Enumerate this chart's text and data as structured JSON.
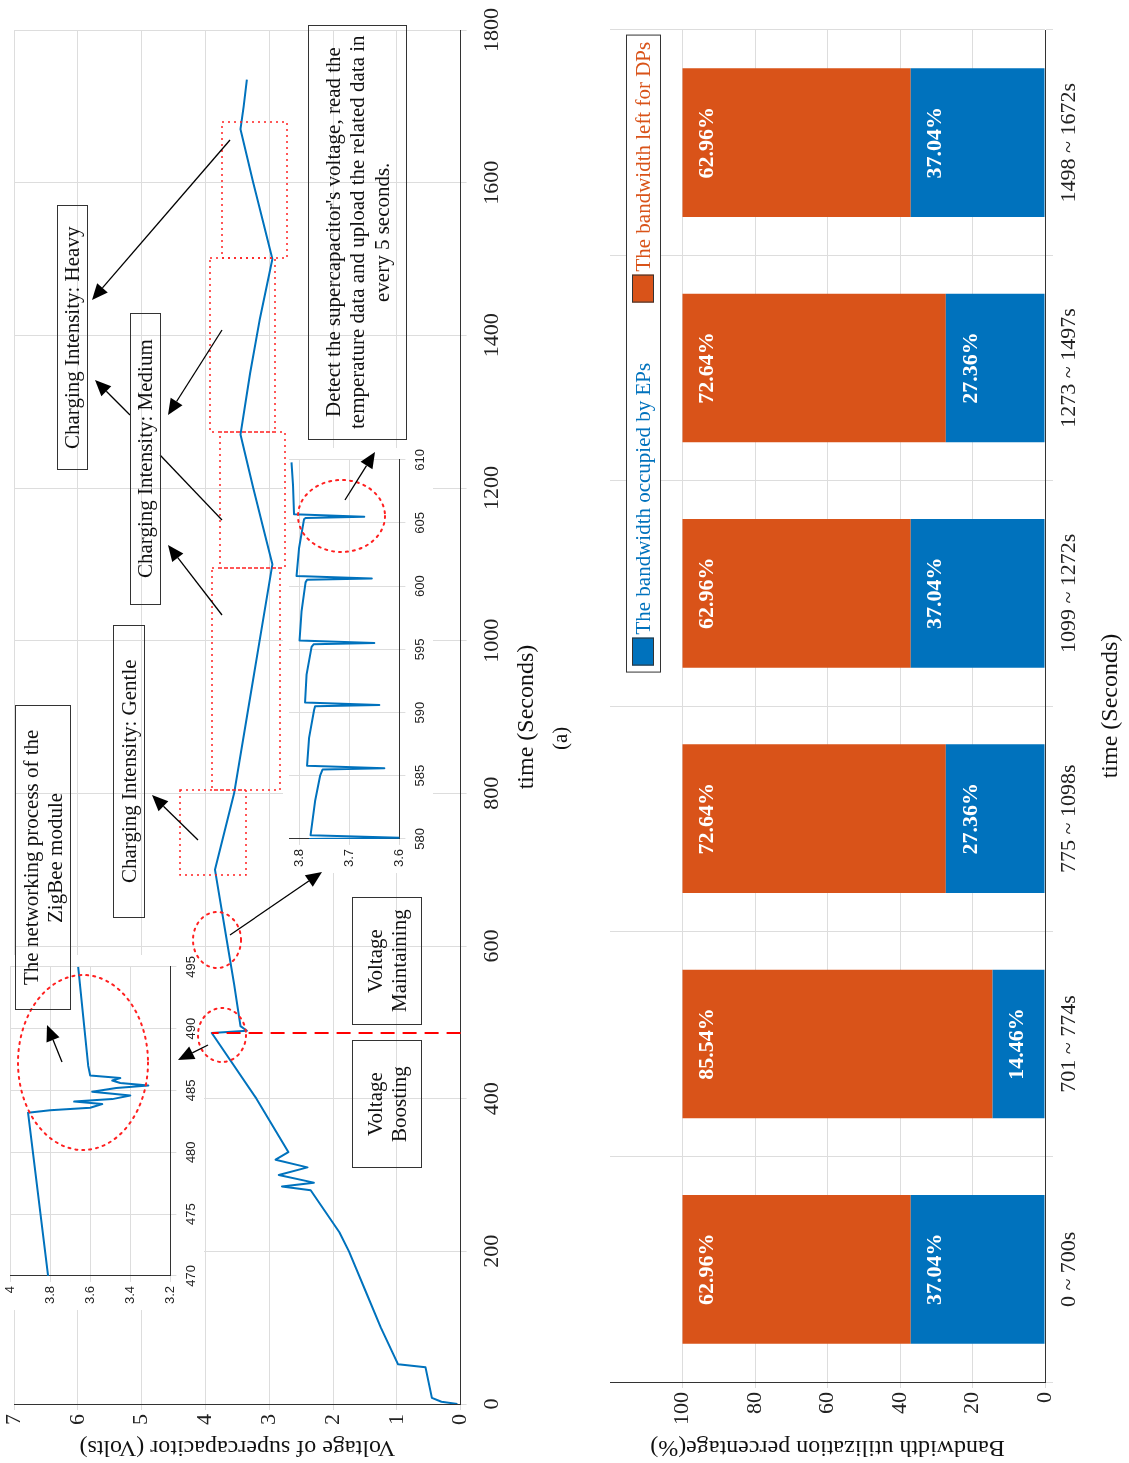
{
  "chart_data": [
    {
      "type": "line",
      "xlabel": "Voltage of supercapacitor (Volts)",
      "ylabel": "time (Seconds)",
      "color": "#0072bd",
      "x": [
        0.05,
        0.3,
        0.45,
        0.55,
        0.98,
        1.25,
        1.5,
        1.75,
        1.9,
        2.35,
        2.8,
        2.3,
        2.85,
        2.4,
        2.9,
        2.7,
        3.2,
        3.9,
        3.35,
        3.45,
        3.55,
        3.65,
        3.75,
        3.85,
        3.7,
        3.55,
        3.35,
        3.15,
        2.95,
        3.1,
        3.25,
        3.45,
        3.3,
        3.15,
        2.95,
        3.1,
        3.25,
        3.45,
        3.4,
        3.35
      ],
      "values": [
        0,
        3,
        8,
        48,
        52,
        100,
        150,
        200,
        225,
        280,
        285,
        290,
        300,
        310,
        320,
        330,
        400,
        486,
        489,
        495,
        550,
        600,
        650,
        700,
        750,
        800,
        900,
        1000,
        1100,
        1150,
        1200,
        1270,
        1350,
        1420,
        1500,
        1550,
        1600,
        1670,
        1700,
        1735
      ],
      "xlim": [
        7,
        0
      ],
      "xticks": [
        7,
        6,
        5,
        4,
        3,
        2,
        1,
        0
      ],
      "ylim": [
        0,
        1800
      ],
      "yticks": [
        0,
        200,
        400,
        600,
        800,
        1000,
        1200,
        1400,
        1600,
        1800
      ],
      "grid": true,
      "ref_lines": [
        {
          "axis": "y",
          "value": 486,
          "color": "#ff0000",
          "line_style": "dashed"
        }
      ],
      "annotations": [
        "The networking process of the ZigBee module",
        "Charging Intensity: Gentle",
        "Charging Intensity: Medium",
        "Charging Intensity: Heavy",
        "Voltage Boosting",
        "Voltage Maintaining",
        "Detect the supercapacitor's voltage, read the temperature data and upload the related data in every 5 seconds.",
        "(a)"
      ]
    },
    {
      "type": "line",
      "color": "#0072bd",
      "x": [
        3.81,
        3.91,
        3.8,
        3.6,
        3.54,
        3.68,
        3.49,
        3.4,
        3.59,
        3.47,
        3.31,
        3.45,
        3.49,
        3.45,
        3.6,
        3.61,
        3.66
      ],
      "values": [
        470,
        483.2,
        483.4,
        483.6,
        483.9,
        484.1,
        484.3,
        484.6,
        484.9,
        485.2,
        485.4,
        485.6,
        485.8,
        486,
        486.2,
        487,
        495
      ],
      "xlim": [
        4,
        3.2
      ],
      "xticks": [
        4,
        3.8,
        3.6,
        3.4,
        3.2
      ],
      "ylim": [
        470,
        495
      ],
      "yticks": [
        470,
        475,
        480,
        485,
        490,
        495
      ],
      "grid": true
    },
    {
      "type": "line",
      "color": "#0072bd",
      "x": [
        3.78,
        3.6,
        3.777,
        3.768,
        3.758,
        3.753,
        3.63,
        3.784,
        3.78,
        3.77,
        3.768,
        3.64,
        3.788,
        3.785,
        3.775,
        3.771,
        3.65,
        3.799,
        3.795,
        3.787,
        3.784,
        3.655,
        3.805,
        3.8,
        3.79,
        3.787,
        3.67,
        3.81,
        3.812,
        3.815
      ],
      "values": [
        580,
        580.1,
        580.3,
        583,
        585,
        585.5,
        585.6,
        585.8,
        588,
        590.2,
        590.5,
        590.6,
        590.8,
        593,
        595.2,
        595.4,
        595.5,
        595.7,
        598,
        600.3,
        600.5,
        600.6,
        600.8,
        603,
        605.3,
        605.4,
        605.5,
        605.7,
        608,
        609.8
      ],
      "xlim": [
        3.82,
        3.6
      ],
      "xticks": [
        3.8,
        3.7,
        3.6
      ],
      "ylim": [
        580,
        610
      ],
      "yticks": [
        580,
        585,
        590,
        595,
        600,
        605,
        610
      ],
      "grid": true
    },
    {
      "type": "bar",
      "stacked": true,
      "orientation": "horizontal",
      "xlabel": "Bandwidth utilization percentage(%)",
      "ylabel": "time (Seconds)",
      "categories": [
        "1498 ~ 1672s",
        "1273 ~ 1497s",
        "1099 ~ 1272s",
        "775 ~ 1098s",
        "701 ~ 774s",
        "0 ~ 700s"
      ],
      "series": [
        {
          "name": "The bandwidth occupied by EPs",
          "color": "#0072bd",
          "values": [
            37.04,
            27.36,
            37.04,
            27.36,
            14.46,
            37.04
          ],
          "value_labels": [
            "37.04%",
            "27.36%",
            "37.04%",
            "27.36%",
            "14.46%",
            "37.04%"
          ]
        },
        {
          "name": "The bandwidth left for DPs",
          "color": "#d95319",
          "values": [
            62.96,
            72.64,
            62.96,
            72.64,
            85.54,
            62.96
          ],
          "value_labels": [
            "62.96%",
            "72.64%",
            "62.96%",
            "72.64%",
            "85.54%",
            "62.96%"
          ]
        }
      ],
      "xlim": [
        120,
        0
      ],
      "xticks": [
        100,
        80,
        60,
        40,
        20,
        0
      ],
      "grid": true,
      "legend": "top left"
    }
  ]
}
